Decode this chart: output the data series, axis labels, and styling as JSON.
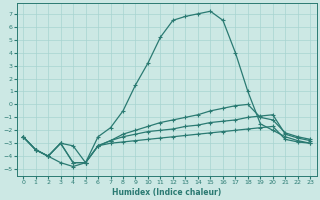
{
  "xlabel": "Humidex (Indice chaleur)",
  "xlim": [
    -0.5,
    23.5
  ],
  "ylim": [
    -5.5,
    7.8
  ],
  "xticks": [
    0,
    1,
    2,
    3,
    4,
    5,
    6,
    7,
    8,
    9,
    10,
    11,
    12,
    13,
    14,
    15,
    16,
    17,
    18,
    19,
    20,
    21,
    22,
    23
  ],
  "yticks": [
    -5,
    -4,
    -3,
    -2,
    -1,
    0,
    1,
    2,
    3,
    4,
    5,
    6,
    7
  ],
  "bg_color": "#cce8e4",
  "grid_color": "#a8d4d0",
  "line_color": "#2a7a72",
  "lines": [
    {
      "x": [
        0,
        1,
        2,
        3,
        4,
        5,
        6,
        7,
        8,
        9,
        10,
        11,
        12,
        13,
        14,
        15,
        16,
        17,
        18,
        19,
        20,
        21,
        22,
        23
      ],
      "y": [
        -2.5,
        -3.5,
        -4.0,
        -4.5,
        -4.8,
        -4.5,
        -2.5,
        -1.8,
        -0.5,
        1.5,
        3.2,
        5.2,
        6.5,
        6.8,
        7.0,
        7.2,
        6.5,
        4.0,
        1.0,
        -1.5,
        -2.0,
        -2.5,
        -2.8,
        -3.0
      ]
    },
    {
      "x": [
        0,
        1,
        2,
        3,
        4,
        5,
        6,
        7,
        8,
        9,
        10,
        11,
        12,
        13,
        14,
        15,
        16,
        17,
        18,
        19,
        20,
        21,
        22,
        23
      ],
      "y": [
        -2.5,
        -3.5,
        -4.0,
        -3.0,
        -3.2,
        -4.5,
        -3.2,
        -2.8,
        -2.3,
        -2.0,
        -1.7,
        -1.4,
        -1.2,
        -1.0,
        -0.8,
        -0.5,
        -0.3,
        -0.1,
        0.0,
        -1.0,
        -1.2,
        -2.2,
        -2.5,
        -2.7
      ]
    },
    {
      "x": [
        0,
        1,
        2,
        3,
        4,
        5,
        6,
        7,
        8,
        9,
        10,
        11,
        12,
        13,
        14,
        15,
        16,
        17,
        18,
        19,
        20,
        21,
        22,
        23
      ],
      "y": [
        -2.5,
        -3.5,
        -4.0,
        -3.0,
        -4.5,
        -4.5,
        -3.2,
        -2.8,
        -2.5,
        -2.3,
        -2.1,
        -2.0,
        -1.9,
        -1.7,
        -1.6,
        -1.4,
        -1.3,
        -1.2,
        -1.0,
        -0.9,
        -0.8,
        -2.3,
        -2.6,
        -2.8
      ]
    },
    {
      "x": [
        0,
        1,
        2,
        3,
        4,
        5,
        6,
        7,
        8,
        9,
        10,
        11,
        12,
        13,
        14,
        15,
        16,
        17,
        18,
        19,
        20,
        21,
        22,
        23
      ],
      "y": [
        -2.5,
        -3.5,
        -4.0,
        -3.0,
        -4.5,
        -4.5,
        -3.2,
        -3.0,
        -2.9,
        -2.8,
        -2.7,
        -2.6,
        -2.5,
        -2.4,
        -2.3,
        -2.2,
        -2.1,
        -2.0,
        -1.9,
        -1.8,
        -1.7,
        -2.7,
        -2.9,
        -3.0
      ]
    }
  ]
}
